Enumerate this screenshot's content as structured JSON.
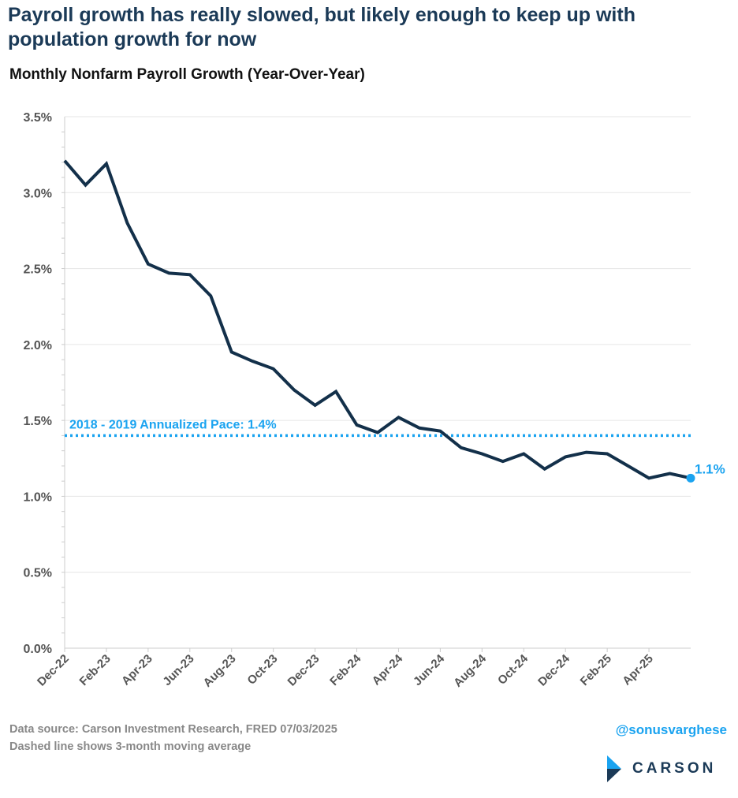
{
  "title": "Payroll growth has really slowed, but likely enough to keep up with population growth for now",
  "subtitle": "Monthly Nonfarm Payroll Growth (Year-Over-Year)",
  "footer": {
    "source": "Data source: Carson Investment Research, FRED    07/03/2025",
    "note": "Dashed line shows 3-month moving average",
    "handle": "@sonusvarghese",
    "logo": "CARSON"
  },
  "colors": {
    "line": "#13304a",
    "reference": "#1aa3f0",
    "title": "#1b3a57",
    "grid": "#e6e6e6"
  },
  "chart_data": {
    "type": "line",
    "title": "Monthly Nonfarm Payroll Growth (Year-Over-Year)",
    "ylim": [
      0,
      3.5
    ],
    "yticks": [
      0,
      0.5,
      1.0,
      1.5,
      2.0,
      2.5,
      3.0,
      3.5
    ],
    "ytick_labels": [
      "0.0%",
      "0.5%",
      "1.0%",
      "1.5%",
      "2.0%",
      "2.5%",
      "3.0%",
      "3.5%"
    ],
    "x": [
      "Dec-22",
      "Jan-23",
      "Feb-23",
      "Mar-23",
      "Apr-23",
      "May-23",
      "Jun-23",
      "Jul-23",
      "Aug-23",
      "Sep-23",
      "Oct-23",
      "Nov-23",
      "Dec-23",
      "Jan-24",
      "Feb-24",
      "Mar-24",
      "Apr-24",
      "May-24",
      "Jun-24",
      "Jul-24",
      "Aug-24",
      "Sep-24",
      "Oct-24",
      "Nov-24",
      "Dec-24",
      "Jan-25",
      "Feb-25",
      "Mar-25",
      "Apr-25",
      "May-25",
      "Jun-25"
    ],
    "xtick_labels": [
      "Dec-22",
      "Feb-23",
      "Apr-23",
      "Jun-23",
      "Aug-23",
      "Oct-23",
      "Dec-23",
      "Feb-24",
      "Apr-24",
      "Jun-24",
      "Aug-24",
      "Oct-24",
      "Dec-24",
      "Feb-25",
      "Apr-25"
    ],
    "values": [
      3.21,
      3.05,
      3.19,
      2.8,
      2.53,
      2.47,
      2.46,
      2.32,
      1.95,
      1.89,
      1.84,
      1.7,
      1.6,
      1.69,
      1.47,
      1.42,
      1.52,
      1.45,
      1.43,
      1.32,
      1.28,
      1.23,
      1.28,
      1.18,
      1.26,
      1.29,
      1.28,
      1.2,
      1.12,
      1.15,
      1.12
    ],
    "reference_line": {
      "value": 1.4,
      "label": "2018 - 2019 Annualized Pace: 1.4%"
    },
    "end_label": "1.1%",
    "grid": true
  }
}
